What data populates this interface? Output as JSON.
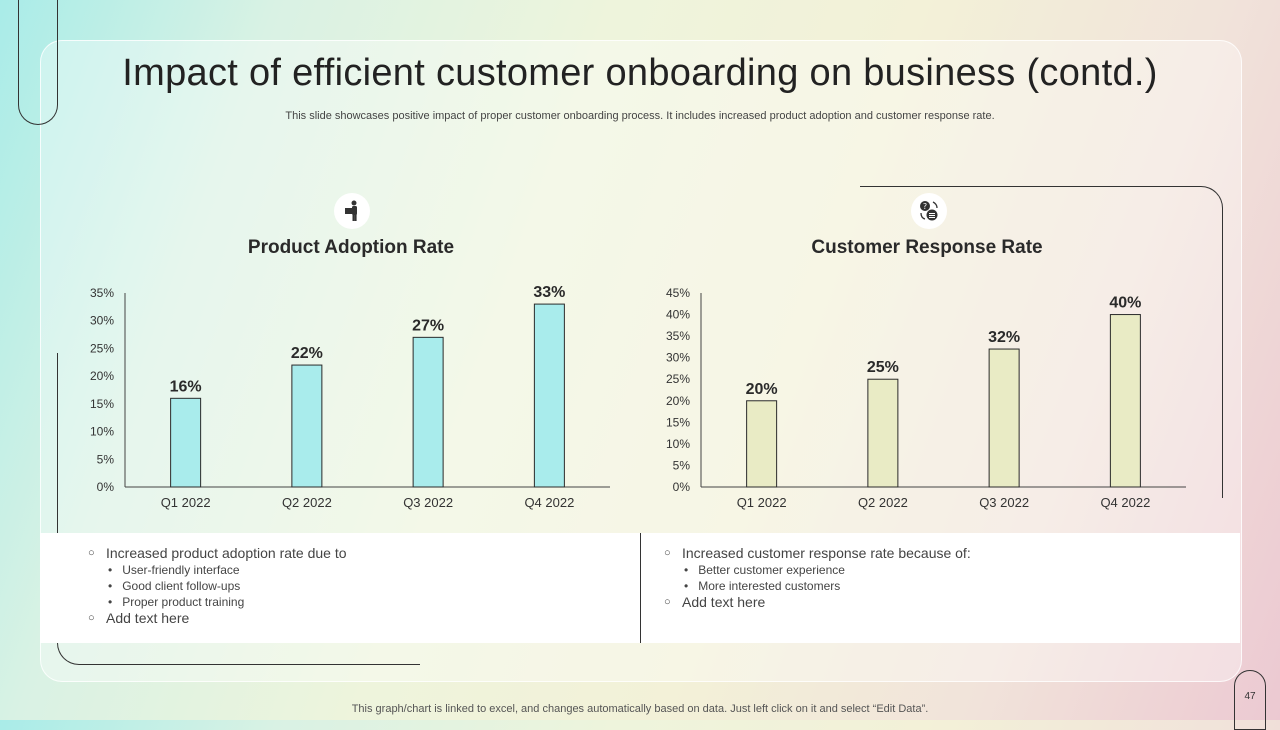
{
  "title": "Impact of efficient customer onboarding on business (contd.)",
  "subtitle": "This slide showcases positive impact of proper customer onboarding process. It includes increased product adoption and customer response rate.",
  "footer": "This graph/chart is linked to excel,  and changes automatically based on data. Just left click on it and select “Edit Data”.",
  "page_number": "47",
  "icons": {
    "left": "person-with-box-icon",
    "right": "chat-question-icon"
  },
  "colors": {
    "bar_left": "#a9ecec",
    "bar_right": "#e9ebc5",
    "stroke": "#2a2a2a"
  },
  "chart_data": [
    {
      "type": "bar",
      "title": "Product Adoption Rate",
      "categories": [
        "Q1 2022",
        "Q2 2022",
        "Q3 2022",
        "Q4 2022"
      ],
      "values": [
        16,
        22,
        27,
        33
      ],
      "data_labels": [
        "16%",
        "22%",
        "27%",
        "33%"
      ],
      "ylim": [
        0,
        35
      ],
      "ystep": 5,
      "yticks": [
        "0%",
        "5%",
        "10%",
        "15%",
        "20%",
        "25%",
        "30%",
        "35%"
      ],
      "xlabel": "",
      "ylabel": "",
      "grid": false
    },
    {
      "type": "bar",
      "title": "Customer Response Rate",
      "categories": [
        "Q1 2022",
        "Q2 2022",
        "Q3 2022",
        "Q4 2022"
      ],
      "values": [
        20,
        25,
        32,
        40
      ],
      "data_labels": [
        "20%",
        "25%",
        "32%",
        "40%"
      ],
      "ylim": [
        0,
        45
      ],
      "ystep": 5,
      "yticks": [
        "0%",
        "5%",
        "10%",
        "15%",
        "20%",
        "25%",
        "30%",
        "35%",
        "40%",
        "45%"
      ],
      "xlabel": "",
      "ylabel": "",
      "grid": false
    }
  ],
  "notes": {
    "left": {
      "main": "Increased product adoption rate due to",
      "subs": [
        "User-friendly  interface",
        "Good client follow-ups",
        "Proper product training"
      ],
      "extra": "Add text here"
    },
    "right": {
      "main": "Increased customer response rate because of:",
      "subs": [
        "Better customer experience",
        "More interested customers"
      ],
      "extra": "Add text here"
    }
  }
}
